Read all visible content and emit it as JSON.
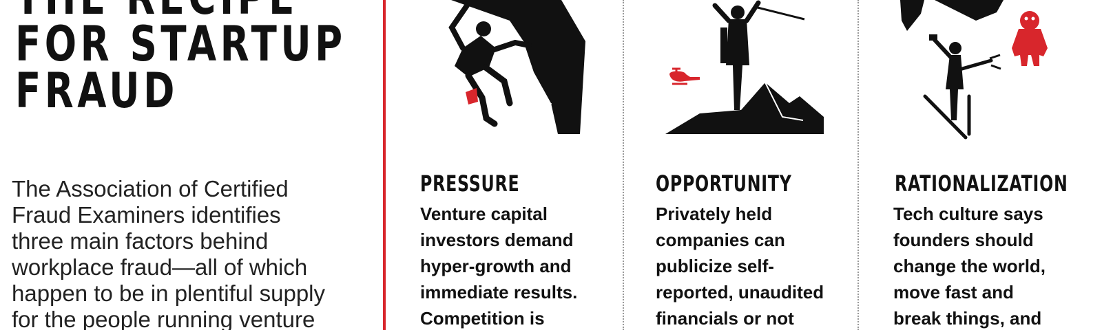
{
  "colors": {
    "accent_red": "#d8262c",
    "ink": "#111111",
    "divider": "#9a9a9a"
  },
  "intro": {
    "headline_lines": [
      "THE RECIPE",
      "FOR STARTUP",
      "FRAUD"
    ],
    "body_lines": [
      "The Association of Certified",
      "Fraud Examiners identifies",
      "three main factors behind",
      "workplace fraud—all of which",
      "happen to be in plentiful supply",
      "for the people running venture"
    ]
  },
  "factors": [
    {
      "title": "PRESSURE",
      "icon": "climber-icon",
      "body_lines": [
        "Venture capital",
        "investors demand",
        "hyper-growth and",
        "immediate results.",
        "Competition is"
      ]
    },
    {
      "title": "OPPORTUNITY",
      "icon": "summit-climber-icon",
      "body_lines": [
        "Privately held",
        "companies can",
        "publicize self-",
        "reported, unaudited",
        "financials or not"
      ]
    },
    {
      "title": "RATIONALIZATION",
      "icon": "selfie-skier-bigfoot-icon",
      "body_lines": [
        "Tech culture says",
        "founders should",
        "change the world,",
        "move fast and",
        "break things, and"
      ]
    }
  ]
}
